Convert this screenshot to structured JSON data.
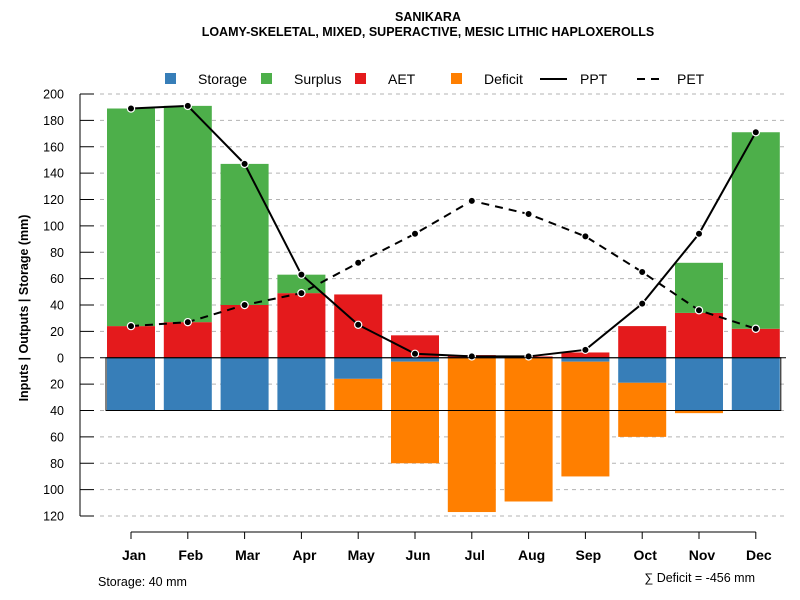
{
  "chart_data": {
    "type": "bar",
    "title": "SANIKARA",
    "subtitle": "LOAMY-SKELETAL, MIXED, SUPERACTIVE, MESIC LITHIC HAPLOXEROLLS",
    "ylabel": "Inputs | Outputs | Storage     (mm)",
    "categories": [
      "Jan",
      "Feb",
      "Mar",
      "Apr",
      "May",
      "Jun",
      "Jul",
      "Aug",
      "Sep",
      "Oct",
      "Nov",
      "Dec"
    ],
    "ylim": [
      -120,
      200
    ],
    "y_ticks": [
      -120,
      -100,
      -80,
      -60,
      -40,
      -20,
      0,
      20,
      40,
      60,
      80,
      100,
      120,
      140,
      160,
      180,
      200
    ],
    "y_tick_labels": [
      "120",
      "100",
      "80",
      "60",
      "40",
      "20",
      "0",
      "20",
      "40",
      "60",
      "80",
      "100",
      "120",
      "140",
      "160",
      "180",
      "200"
    ],
    "grid": true,
    "legend_position": "top",
    "legend": [
      {
        "name": "Storage",
        "kind": "box",
        "color": "#377EB8"
      },
      {
        "name": "Surplus",
        "kind": "box",
        "color": "#4DAF4A"
      },
      {
        "name": "AET",
        "kind": "box",
        "color": "#E41A1C"
      },
      {
        "name": "Deficit",
        "kind": "box",
        "color": "#FF7F00"
      },
      {
        "name": "PPT",
        "kind": "solid"
      },
      {
        "name": "PET",
        "kind": "dashed"
      }
    ],
    "series": [
      {
        "name": "AET",
        "color": "#E41A1C",
        "values": [
          24,
          27,
          40,
          49,
          48,
          17,
          2,
          1,
          4,
          24,
          34,
          22
        ]
      },
      {
        "name": "Surplus",
        "color": "#4DAF4A",
        "values": [
          165,
          164,
          107,
          14,
          0,
          0,
          0,
          0,
          0,
          0,
          38,
          149
        ]
      },
      {
        "name": "Storage",
        "color": "#377EB8",
        "values": [
          -40,
          -40,
          -40,
          -40,
          -16,
          -3,
          0,
          0,
          -3,
          -19,
          -40,
          -40
        ]
      },
      {
        "name": "Deficit",
        "color": "#FF7F00",
        "values": [
          0,
          0,
          0,
          0,
          -24,
          -77,
          -117,
          -109,
          -87,
          -41,
          -2,
          0
        ]
      },
      {
        "name": "PPT",
        "style": "solid",
        "color": "#000000",
        "values": [
          189,
          191,
          147,
          63,
          25,
          3,
          1,
          1,
          6,
          41,
          94,
          171
        ]
      },
      {
        "name": "PET",
        "style": "dashed",
        "color": "#000000",
        "values": [
          24,
          27,
          40,
          49,
          72,
          94,
          119,
          109,
          92,
          65,
          36,
          22
        ]
      }
    ],
    "storage_capacity": -40
  },
  "footer": {
    "storage_note": "Storage: 40 mm",
    "deficit_note": "∑ Deficit = -456 mm"
  }
}
